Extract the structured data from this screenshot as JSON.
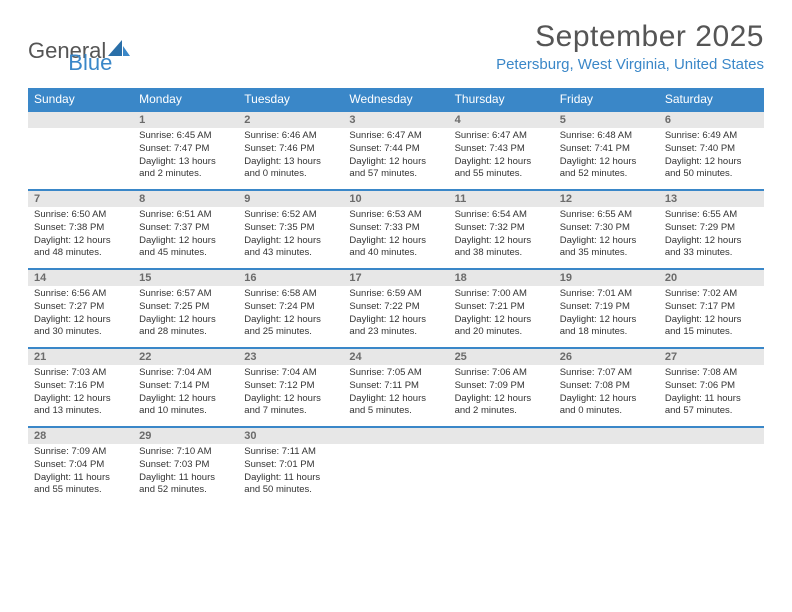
{
  "logo": {
    "part1": "General",
    "part2": "Blue"
  },
  "title": "September 2025",
  "location": "Petersburg, West Virginia, United States",
  "colors": {
    "brand_blue": "#3a87c8",
    "header_text": "#555555",
    "daynum_bg": "#e7e7e7",
    "daynum_text": "#6b6b6b",
    "body_text": "#333333",
    "page_bg": "#ffffff"
  },
  "weekdays": [
    "Sunday",
    "Monday",
    "Tuesday",
    "Wednesday",
    "Thursday",
    "Friday",
    "Saturday"
  ],
  "weeks": [
    {
      "nums": [
        "",
        "1",
        "2",
        "3",
        "4",
        "5",
        "6"
      ],
      "cells": [
        {
          "sunrise": "",
          "sunset": "",
          "daylight": ""
        },
        {
          "sunrise": "Sunrise: 6:45 AM",
          "sunset": "Sunset: 7:47 PM",
          "daylight": "Daylight: 13 hours and 2 minutes."
        },
        {
          "sunrise": "Sunrise: 6:46 AM",
          "sunset": "Sunset: 7:46 PM",
          "daylight": "Daylight: 13 hours and 0 minutes."
        },
        {
          "sunrise": "Sunrise: 6:47 AM",
          "sunset": "Sunset: 7:44 PM",
          "daylight": "Daylight: 12 hours and 57 minutes."
        },
        {
          "sunrise": "Sunrise: 6:47 AM",
          "sunset": "Sunset: 7:43 PM",
          "daylight": "Daylight: 12 hours and 55 minutes."
        },
        {
          "sunrise": "Sunrise: 6:48 AM",
          "sunset": "Sunset: 7:41 PM",
          "daylight": "Daylight: 12 hours and 52 minutes."
        },
        {
          "sunrise": "Sunrise: 6:49 AM",
          "sunset": "Sunset: 7:40 PM",
          "daylight": "Daylight: 12 hours and 50 minutes."
        }
      ]
    },
    {
      "nums": [
        "7",
        "8",
        "9",
        "10",
        "11",
        "12",
        "13"
      ],
      "cells": [
        {
          "sunrise": "Sunrise: 6:50 AM",
          "sunset": "Sunset: 7:38 PM",
          "daylight": "Daylight: 12 hours and 48 minutes."
        },
        {
          "sunrise": "Sunrise: 6:51 AM",
          "sunset": "Sunset: 7:37 PM",
          "daylight": "Daylight: 12 hours and 45 minutes."
        },
        {
          "sunrise": "Sunrise: 6:52 AM",
          "sunset": "Sunset: 7:35 PM",
          "daylight": "Daylight: 12 hours and 43 minutes."
        },
        {
          "sunrise": "Sunrise: 6:53 AM",
          "sunset": "Sunset: 7:33 PM",
          "daylight": "Daylight: 12 hours and 40 minutes."
        },
        {
          "sunrise": "Sunrise: 6:54 AM",
          "sunset": "Sunset: 7:32 PM",
          "daylight": "Daylight: 12 hours and 38 minutes."
        },
        {
          "sunrise": "Sunrise: 6:55 AM",
          "sunset": "Sunset: 7:30 PM",
          "daylight": "Daylight: 12 hours and 35 minutes."
        },
        {
          "sunrise": "Sunrise: 6:55 AM",
          "sunset": "Sunset: 7:29 PM",
          "daylight": "Daylight: 12 hours and 33 minutes."
        }
      ]
    },
    {
      "nums": [
        "14",
        "15",
        "16",
        "17",
        "18",
        "19",
        "20"
      ],
      "cells": [
        {
          "sunrise": "Sunrise: 6:56 AM",
          "sunset": "Sunset: 7:27 PM",
          "daylight": "Daylight: 12 hours and 30 minutes."
        },
        {
          "sunrise": "Sunrise: 6:57 AM",
          "sunset": "Sunset: 7:25 PM",
          "daylight": "Daylight: 12 hours and 28 minutes."
        },
        {
          "sunrise": "Sunrise: 6:58 AM",
          "sunset": "Sunset: 7:24 PM",
          "daylight": "Daylight: 12 hours and 25 minutes."
        },
        {
          "sunrise": "Sunrise: 6:59 AM",
          "sunset": "Sunset: 7:22 PM",
          "daylight": "Daylight: 12 hours and 23 minutes."
        },
        {
          "sunrise": "Sunrise: 7:00 AM",
          "sunset": "Sunset: 7:21 PM",
          "daylight": "Daylight: 12 hours and 20 minutes."
        },
        {
          "sunrise": "Sunrise: 7:01 AM",
          "sunset": "Sunset: 7:19 PM",
          "daylight": "Daylight: 12 hours and 18 minutes."
        },
        {
          "sunrise": "Sunrise: 7:02 AM",
          "sunset": "Sunset: 7:17 PM",
          "daylight": "Daylight: 12 hours and 15 minutes."
        }
      ]
    },
    {
      "nums": [
        "21",
        "22",
        "23",
        "24",
        "25",
        "26",
        "27"
      ],
      "cells": [
        {
          "sunrise": "Sunrise: 7:03 AM",
          "sunset": "Sunset: 7:16 PM",
          "daylight": "Daylight: 12 hours and 13 minutes."
        },
        {
          "sunrise": "Sunrise: 7:04 AM",
          "sunset": "Sunset: 7:14 PM",
          "daylight": "Daylight: 12 hours and 10 minutes."
        },
        {
          "sunrise": "Sunrise: 7:04 AM",
          "sunset": "Sunset: 7:12 PM",
          "daylight": "Daylight: 12 hours and 7 minutes."
        },
        {
          "sunrise": "Sunrise: 7:05 AM",
          "sunset": "Sunset: 7:11 PM",
          "daylight": "Daylight: 12 hours and 5 minutes."
        },
        {
          "sunrise": "Sunrise: 7:06 AM",
          "sunset": "Sunset: 7:09 PM",
          "daylight": "Daylight: 12 hours and 2 minutes."
        },
        {
          "sunrise": "Sunrise: 7:07 AM",
          "sunset": "Sunset: 7:08 PM",
          "daylight": "Daylight: 12 hours and 0 minutes."
        },
        {
          "sunrise": "Sunrise: 7:08 AM",
          "sunset": "Sunset: 7:06 PM",
          "daylight": "Daylight: 11 hours and 57 minutes."
        }
      ]
    },
    {
      "nums": [
        "28",
        "29",
        "30",
        "",
        "",
        "",
        ""
      ],
      "cells": [
        {
          "sunrise": "Sunrise: 7:09 AM",
          "sunset": "Sunset: 7:04 PM",
          "daylight": "Daylight: 11 hours and 55 minutes."
        },
        {
          "sunrise": "Sunrise: 7:10 AM",
          "sunset": "Sunset: 7:03 PM",
          "daylight": "Daylight: 11 hours and 52 minutes."
        },
        {
          "sunrise": "Sunrise: 7:11 AM",
          "sunset": "Sunset: 7:01 PM",
          "daylight": "Daylight: 11 hours and 50 minutes."
        },
        {
          "sunrise": "",
          "sunset": "",
          "daylight": ""
        },
        {
          "sunrise": "",
          "sunset": "",
          "daylight": ""
        },
        {
          "sunrise": "",
          "sunset": "",
          "daylight": ""
        },
        {
          "sunrise": "",
          "sunset": "",
          "daylight": ""
        }
      ]
    }
  ]
}
